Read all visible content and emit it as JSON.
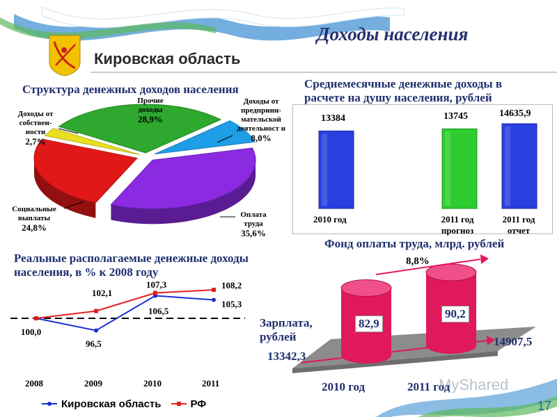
{
  "header": {
    "title": "Доходы населения",
    "region": "Кировская область",
    "page_number": "17",
    "watermark": "MyShared"
  },
  "chart_data": [
    {
      "type": "pie",
      "title": "Структура денежных доходов населения",
      "slices": [
        {
          "label": "Оплата труда",
          "value": 35.6,
          "display": "35,6%",
          "color": "#8a2be2"
        },
        {
          "label": "Социальные выплаты",
          "value": 24.8,
          "display": "24,8%",
          "color": "#e01818"
        },
        {
          "label": "Доходы от собствен-ности",
          "value": 2.7,
          "display": "2,7%",
          "color": "#e8e020"
        },
        {
          "label": "Прочие доходы",
          "value": 28.9,
          "display": "28,9%",
          "color": "#2ea82e"
        },
        {
          "label": "Доходы от предприни-мательской деятельност и",
          "value": 8.0,
          "display": "8,0%",
          "color": "#1e9ee6"
        }
      ]
    },
    {
      "type": "bar",
      "title": "Среднемесячные денежные доходы в расчете на душу населения, рублей",
      "categories": [
        "2010 год",
        "2011 год прогноз",
        "2011 год отчет"
      ],
      "values": [
        13384,
        13745,
        14635.9
      ],
      "value_labels": [
        "13384",
        "13745",
        "14635,9"
      ],
      "colors": [
        "#2a3fe0",
        "#2ecc2e",
        "#2a3fe0"
      ]
    },
    {
      "type": "line",
      "title": "Реальные располагаемые денежные доходы населения, в % к 2008 году",
      "categories": [
        "2008",
        "2009",
        "2010",
        "2011"
      ],
      "baseline": 100,
      "series": [
        {
          "name": "Кировская область",
          "values": [
            100.0,
            96.5,
            106.5,
            105.3
          ],
          "labels": [
            "100,0",
            "96,5",
            "106,5",
            "105,3"
          ],
          "color": "#1a2fd0"
        },
        {
          "name": "РФ",
          "values": [
            100.0,
            102.1,
            107.3,
            108.2
          ],
          "labels": [
            "",
            "102,1",
            "107,3",
            "108,2"
          ],
          "color": "#e02020"
        }
      ]
    },
    {
      "type": "bar",
      "title": "Фонд оплаты труда, млрд. рублей",
      "categories": [
        "2010 год",
        "2011 год"
      ],
      "values": [
        82.9,
        90.2
      ],
      "value_labels": [
        "82,9",
        "90,2"
      ],
      "growth_label": "8,8%",
      "salary_label": "Зарплата, рублей",
      "salary_values": [
        "13342,3",
        "14907,5"
      ],
      "color": "#e0185c"
    }
  ]
}
